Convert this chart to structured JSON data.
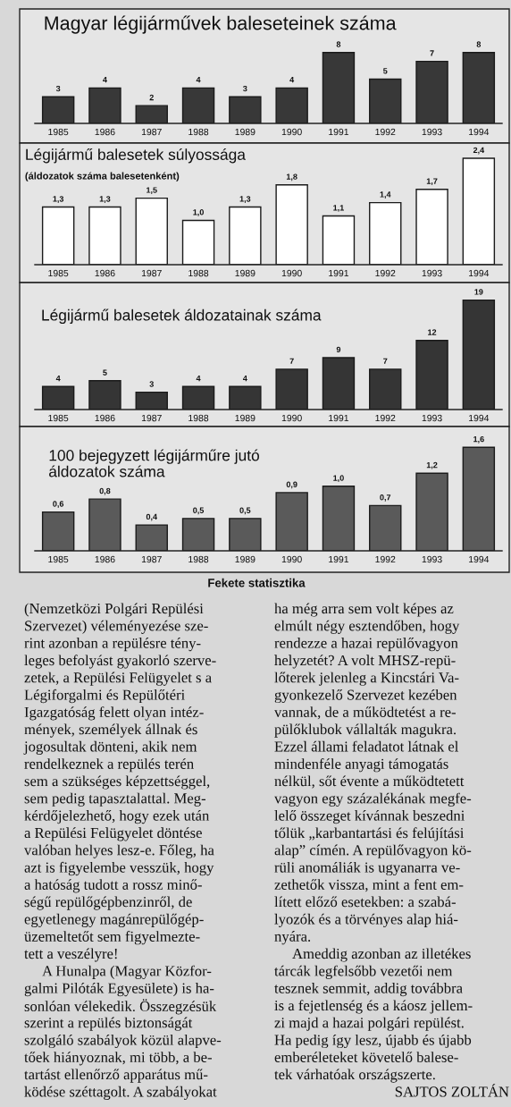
{
  "chart_data": [
    {
      "type": "bar",
      "title": "Magyar légijárművek baleseteinek száma",
      "categories": [
        "1985",
        "1986",
        "1987",
        "1988",
        "1989",
        "1990",
        "1991",
        "1992",
        "1993",
        "1994"
      ],
      "values": [
        3,
        4,
        2,
        4,
        3,
        4,
        8,
        5,
        7,
        8
      ],
      "color": "#383838",
      "data_labels": true,
      "tick_labels": "x"
    },
    {
      "type": "bar",
      "title": "Légijármű balesetek súlyossága",
      "subtitle": "(áldozatok száma balesetenként)",
      "categories": [
        "1985",
        "1986",
        "1987",
        "1988",
        "1989",
        "1990",
        "1991",
        "1992",
        "1993",
        "1994"
      ],
      "values": [
        1.3,
        1.3,
        1.5,
        1.0,
        1.3,
        1.8,
        1.1,
        1.4,
        1.7,
        2.4
      ],
      "color": "#ffffff",
      "value_labels": [
        "1,3",
        "1,3",
        "1,5",
        "1,0",
        "1,3",
        "1,8",
        "1,1",
        "1,4",
        "1,7",
        "2,4"
      ],
      "tick_labels": "x"
    },
    {
      "type": "bar",
      "title": "Légijármű balesetek áldozatainak száma",
      "categories": [
        "1985",
        "1986",
        "1987",
        "1988",
        "1989",
        "1990",
        "1991",
        "1992",
        "1993",
        "1994"
      ],
      "values": [
        4,
        5,
        3,
        4,
        4,
        7,
        9,
        7,
        12,
        19
      ],
      "color": "#353535",
      "data_labels": true,
      "tick_labels": "x"
    },
    {
      "type": "bar",
      "title": "100 bejegyzett légijárműre jutó\náldozatok száma",
      "categories": [
        "1985",
        "1986",
        "1987",
        "1988",
        "1989",
        "1990",
        "1991",
        "1992",
        "1993",
        "1994"
      ],
      "values": [
        0.6,
        0.8,
        0.4,
        0.5,
        0.5,
        0.9,
        1.0,
        0.7,
        1.2,
        1.6
      ],
      "color": "#5a5a5a",
      "value_labels": [
        "0,6",
        "0,8",
        "0,4",
        "0,5",
        "0,5",
        "0,9",
        "1,0",
        "0,7",
        "1,2",
        "1,6"
      ],
      "tick_labels": "x"
    },
    {
      "type": "other",
      "title": "Fekete statisztika",
      "annotations": [
        "(Nemzetközi Polgári Repülési\nSzervezet) véleményezése sze-\nrint azonban a repülésre tény-\nleges befolyást gyakorló szerve-\nzetek, a Repülési Felügyelet s a\nLégiforgalmi és Repülőtéri\nIgazgatóság felett olyan intéz-\nmények, személyek állnak és\njogosultak dönteni, akik nem\nrendelkeznek a repülés terén\nsem a szükséges képzettséggel,\nsem pedig tapasztalattal. Meg-\nkérdőjelezhető, hogy ezek után\na Repülési Felügyelet döntése\nvalóban helyes lesz-e. Főleg, ha\nazt is figyelembe vesszük, hogy\na hatóság tudott a rossz minő-\nségű repülőgépbenzinről, de\negyetlenegy magánrepülőgép-\nüzemeltetőt sem figyelmezte-\ntett a veszélyre!",
        "A Hunalpa (Magyar Közfor-\ngalmi Pilóták Egyesülete) is ha-\nsonlóan vélekedik. Összegzésük\nszerint a repülés biztonságát\nszolgáló szabályok közül alapve-\ntőek hiányoznak, mi több, a be-\ntartást ellenőrző apparátus mű-\nködése széttagolt. A szabályokat",
        "ha még arra sem volt képes az\nelmúlt négy esztendőben, hogy\nrendezze a hazai repülővagyon\nhelyzetét? A volt MHSZ-repü-\nlőterek jelenleg a Kincstári Va-\ngyonkezelő Szervezet kezében\nvannak, de a működtetést a re-\npülőklubok vállalták magukra.\nEzzel állami feladatot látnak el\nmindenféle anyagi támogatás\nnélkül, sőt évente a működtetett\nvagyon egy százalékának megfe-\nlelő összeget kívánnak beszedni\ntőlük „karbantartási és felújítási\nalap” címén. A repülővagyon kö-\nrüli anomáliák is ugyanarra ve-\nzethetők vissza, mint a fent em-\nlített előző esetekben: a szabá-\nlyozók és a törvényes alap hiá-\nnyára.",
        "Ameddig azonban az illetékes\ntárcák legfelsőbb vezetői nem\ntesznek semmit, addig továbbra\nis a fejetlenség és a káosz jellem-\nzi majd a hazai polgári repülést.\nHa pedig így lesz, újabb és újabb\nemberéleteket követelő balese-\ntek várhatóak országszerte.",
        "SAJTOS ZOLTÁN"
      ]
    }
  ]
}
